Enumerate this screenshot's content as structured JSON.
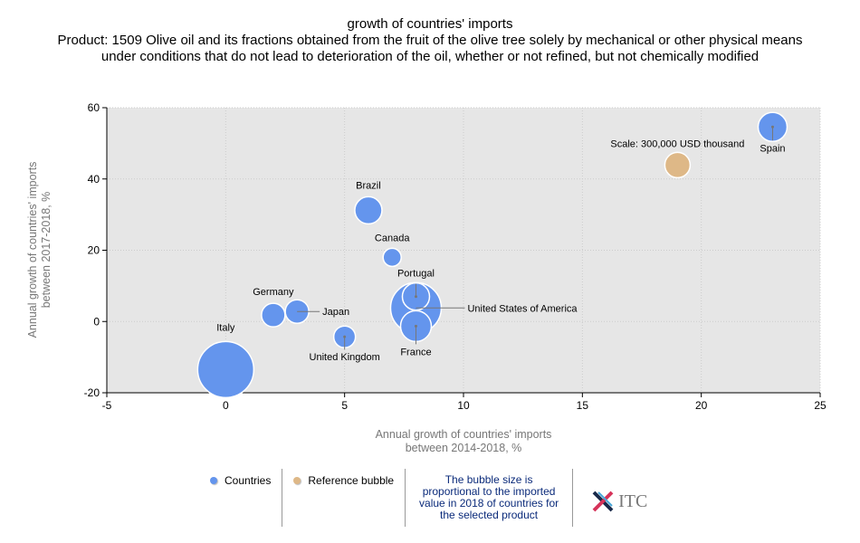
{
  "title": {
    "line1": "growth of countries' imports",
    "line2": "Product: 1509 Olive oil and its fractions obtained from the fruit of the olive tree solely by mechanical or other physical means under conditions that do not lead to deterioration of the oil, whether or not refined, but not chemically modified"
  },
  "chart_data": {
    "type": "scatter",
    "subtype": "bubble",
    "xlabel": [
      "Annual growth of countries' imports",
      "between 2014-2018, %"
    ],
    "ylabel": [
      "Annual growth of countries' imports",
      "between 2017-2018, %"
    ],
    "xlim": [
      -5,
      25
    ],
    "ylim": [
      -20,
      60
    ],
    "xticks": [
      -5,
      0,
      5,
      10,
      15,
      20,
      25
    ],
    "yticks": [
      -20,
      0,
      20,
      40,
      60
    ],
    "grid": true,
    "size_unit": "USD thousand (approx., relative to reference)",
    "points": [
      {
        "name": "Spain",
        "x": 23,
        "y": 54.6,
        "size": 392000,
        "series": "Countries"
      },
      {
        "name": "Brazil",
        "x": 6,
        "y": 31.2,
        "size": 345000,
        "series": "Countries"
      },
      {
        "name": "Canada",
        "x": 7,
        "y": 18,
        "size": 153000,
        "series": "Countries"
      },
      {
        "name": "Portugal",
        "x": 8,
        "y": 7,
        "size": 345000,
        "series": "Countries"
      },
      {
        "name": "United States of America",
        "x": 8,
        "y": 3.8,
        "size": 1200000,
        "series": "Countries"
      },
      {
        "name": "France",
        "x": 8,
        "y": -1.3,
        "size": 442000,
        "series": "Countries"
      },
      {
        "name": "Germany",
        "x": 2,
        "y": 1.8,
        "size": 259000,
        "series": "Countries"
      },
      {
        "name": "Japan",
        "x": 3,
        "y": 2.8,
        "size": 259000,
        "series": "Countries"
      },
      {
        "name": "United Kingdom",
        "x": 5,
        "y": -4.3,
        "size": 220000,
        "series": "Countries"
      },
      {
        "name": "Italy",
        "x": 0,
        "y": -13.5,
        "size": 1470000,
        "series": "Countries"
      },
      {
        "name": "Scale: 300,000 USD thousand",
        "x": 19,
        "y": 43.9,
        "size": 300000,
        "series": "Reference bubble"
      }
    ]
  },
  "legend": {
    "countries": "Countries",
    "reference": "Reference bubble",
    "note": "The bubble size is proportional to the imported value in 2018 of countries for the selected product",
    "logo": "ITC"
  },
  "colors": {
    "countries": "#6495ED",
    "reference": "#DEB887",
    "plot_bg": "#E6E6E6"
  }
}
